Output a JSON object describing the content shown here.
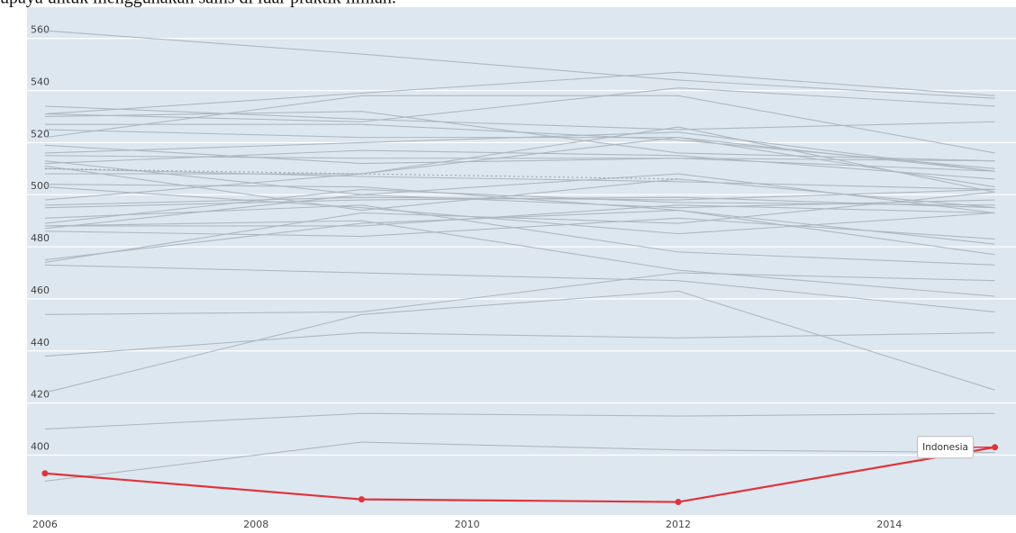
{
  "intro_text": "upaya untuk menggunakan sains di luar praktik ilmiah.",
  "chart_data": {
    "type": "line",
    "x": [
      2006,
      2009,
      2012,
      2015
    ],
    "xlim": [
      2005.83,
      2015.2
    ],
    "xticks": [
      2006,
      2008,
      2010,
      2012,
      2014
    ],
    "ylim": [
      377,
      572
    ],
    "yticks": [
      400,
      420,
      440,
      460,
      480,
      500,
      520,
      540,
      560
    ],
    "grid": true,
    "background": "#dde7ef",
    "series": [
      {
        "color": "#aeb8c1",
        "values": [
          563,
          554,
          544,
          537
        ]
      },
      {
        "color": "#aeb8c1",
        "values": [
          531,
          539,
          547,
          538
        ]
      },
      {
        "color": "#aeb8c1",
        "values": [
          531,
          528,
          541,
          534
        ]
      },
      {
        "color": "#aeb8c1",
        "values": [
          522,
          538,
          538,
          516
        ]
      },
      {
        "color": "#aeb8c1",
        "values": [
          530,
          532,
          516,
          513
        ]
      },
      {
        "color": "#aeb8c1",
        "values": [
          534,
          529,
          525,
          528
        ]
      },
      {
        "color": "#aeb8c1",
        "values": [
          527,
          527,
          521,
          510
        ]
      },
      {
        "color": "#aeb8c1",
        "values": [
          525,
          522,
          522,
          509
        ]
      },
      {
        "color": "#aeb8c1",
        "values": [
          516,
          520,
          524,
          509
        ]
      },
      {
        "color": "#aeb8c1",
        "values": [
          512,
          517,
          515,
          506
        ]
      },
      {
        "color": "#aeb8c1",
        "values": [
          515,
          514,
          514,
          509
        ]
      },
      {
        "color": "#aeb8c1",
        "values": [
          519,
          512,
          514,
          513
        ]
      },
      {
        "color": "#aeb8c1",
        "values": [
          510,
          507,
          505,
          502
        ]
      },
      {
        "color": "#aeb8c1",
        "values": [
          508,
          508,
          522,
          503
        ]
      },
      {
        "color": "#aeb8c1",
        "values": [
          511,
          494,
          506,
          495
        ]
      },
      {
        "color": "#aeb8c1",
        "values": [
          498,
          508,
          526,
          501
        ]
      },
      {
        "color": "#aeb8c1",
        "values": [
          513,
          500,
          508,
          493
        ]
      },
      {
        "color": "#aeb8c1",
        "values": [
          496,
          499,
          498,
          502
        ]
      },
      {
        "color": "#aeb8c1",
        "values": [
          495,
          498,
          499,
          495
        ]
      },
      {
        "color": "#aeb8c1",
        "values": [
          503,
          495,
          485,
          493
        ]
      },
      {
        "color": "#aeb8c1",
        "values": [
          489,
          502,
          497,
          496
        ]
      },
      {
        "color": "#aeb8c1",
        "values": [
          487,
          500,
          495,
          498
        ]
      },
      {
        "color": "#aeb8c1",
        "values": [
          488,
          488,
          496,
          493
        ]
      },
      {
        "color": "#aeb8c1",
        "values": [
          474,
          493,
          489,
          501
        ]
      },
      {
        "color": "#aeb8c1",
        "values": [
          504,
          503,
          494,
          477
        ]
      },
      {
        "color": "#aeb8c1",
        "values": [
          486,
          484,
          491,
          483
        ]
      },
      {
        "color": "#aeb8c1",
        "values": [
          475,
          489,
          494,
          481
        ]
      },
      {
        "color": "#aeb8c1",
        "values": [
          491,
          496,
          478,
          473
        ]
      },
      {
        "color": "#aeb8c1",
        "values": [
          488,
          490,
          471,
          461
        ]
      },
      {
        "color": "#aeb8c1",
        "values": [
          454,
          455,
          470,
          467
        ]
      },
      {
        "color": "#aeb8c1",
        "values": [
          473,
          470,
          467,
          455
        ]
      },
      {
        "color": "#aeb8c1",
        "values": [
          424,
          454,
          463,
          425
        ]
      },
      {
        "color": "#aeb8c1",
        "values": [
          438,
          447,
          445,
          447
        ]
      },
      {
        "color": "#aeb8c1",
        "values": [
          410,
          416,
          415,
          416
        ]
      },
      {
        "color": "#aeb8c1",
        "values": [
          390,
          405,
          402,
          401
        ]
      },
      {
        "color": "#9aa5af",
        "dashed": true,
        "values": [
          510,
          508,
          506,
          null
        ]
      },
      {
        "name": "Indonesia",
        "color": "#e0343c",
        "highlight": true,
        "values": [
          393,
          383,
          382,
          403
        ]
      }
    ]
  }
}
